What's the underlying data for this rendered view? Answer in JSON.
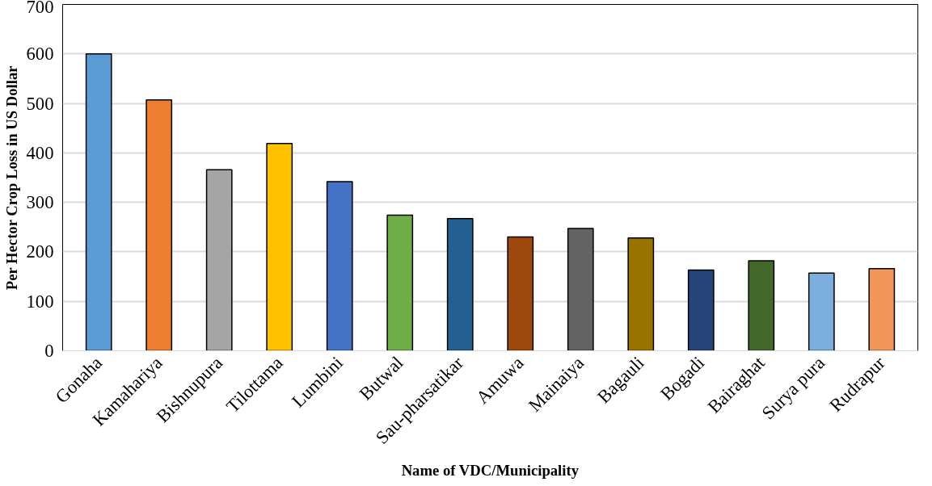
{
  "chart_data": {
    "type": "bar",
    "xlabel": "Name of VDC/Municipality",
    "ylabel": "Per Hector Crop Loss in US Dollar",
    "categories": [
      "Gonaha",
      "Kamahariya",
      "Bishnupura",
      "Tilottama",
      "Lumbini",
      "Butwal",
      "Sau-pharsatikar",
      "Amuwa",
      "Mainaiya",
      "Bagauli",
      "Bogadi",
      "Bairaghat",
      "Surya pura",
      "Rudrapur"
    ],
    "values": [
      600,
      507,
      366,
      419,
      342,
      274,
      267,
      230,
      247,
      228,
      163,
      182,
      157,
      166
    ],
    "colors": [
      "#5b9bd5",
      "#ed7d31",
      "#a5a5a5",
      "#ffc000",
      "#4472c4",
      "#70ad47",
      "#255e91",
      "#9e480e",
      "#636363",
      "#997300",
      "#264478",
      "#43682b",
      "#7cafdd",
      "#f1975a"
    ],
    "ylim": [
      0,
      700
    ],
    "yticks": [
      0,
      100,
      200,
      300,
      400,
      500,
      600,
      700
    ],
    "grid": "y"
  }
}
